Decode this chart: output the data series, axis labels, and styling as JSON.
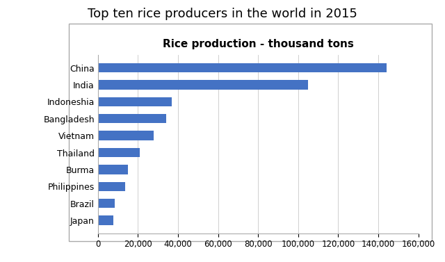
{
  "title": "Top ten rice producers in the world in 2015",
  "chart_title": "Rice production - thousand tons",
  "countries": [
    "China",
    "India",
    "Indoneshia",
    "Bangladesh",
    "Vietnam",
    "Thailand",
    "Burma",
    "Philippines",
    "Brazil",
    "Japan"
  ],
  "values": [
    144000,
    105000,
    37000,
    34000,
    28000,
    21000,
    15000,
    13500,
    8500,
    7800
  ],
  "bar_color": "#4472C4",
  "xlim": [
    0,
    160000
  ],
  "xticks": [
    0,
    20000,
    40000,
    60000,
    80000,
    100000,
    120000,
    140000,
    160000
  ],
  "background_color": "#FFFFFF",
  "title_fontsize": 13,
  "chart_title_fontsize": 11,
  "tick_fontsize": 8.5,
  "label_fontsize": 9
}
